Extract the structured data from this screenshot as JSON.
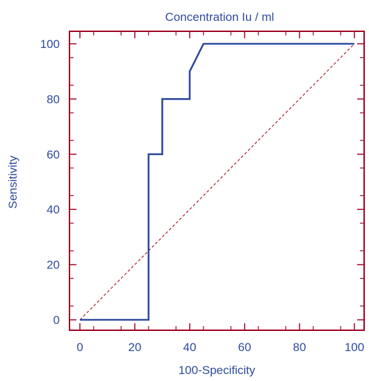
{
  "chart_data": {
    "type": "line",
    "title": "Concentration Iu / ml",
    "xlabel": "100-Specificity",
    "ylabel": "Sensitivity",
    "xlim": [
      0,
      100
    ],
    "ylim": [
      0,
      100
    ],
    "x_ticks": [
      0,
      20,
      40,
      60,
      80,
      100
    ],
    "y_ticks": [
      0,
      20,
      40,
      60,
      80,
      100
    ],
    "x_tick_labels": [
      "0",
      "20",
      "40",
      "60",
      "80",
      "100"
    ],
    "y_tick_labels": [
      "0",
      "20",
      "40",
      "60",
      "80",
      "100"
    ],
    "grid": false,
    "legend": "none",
    "series": [
      {
        "style": "step",
        "x": [
          0,
          25,
          25,
          30,
          30,
          40,
          40,
          45,
          100
        ],
        "y": [
          0,
          0,
          60,
          60,
          80,
          80,
          90,
          100,
          100
        ]
      },
      {
        "style": "dashed-diagonal",
        "x": [
          0,
          100
        ],
        "y": [
          0,
          100
        ]
      }
    ],
    "colors": {
      "roc_line": "#2e4a9e",
      "reference_line": "#b01c2e",
      "axes_box": "#a00020",
      "text": "#2e4a9e"
    }
  }
}
